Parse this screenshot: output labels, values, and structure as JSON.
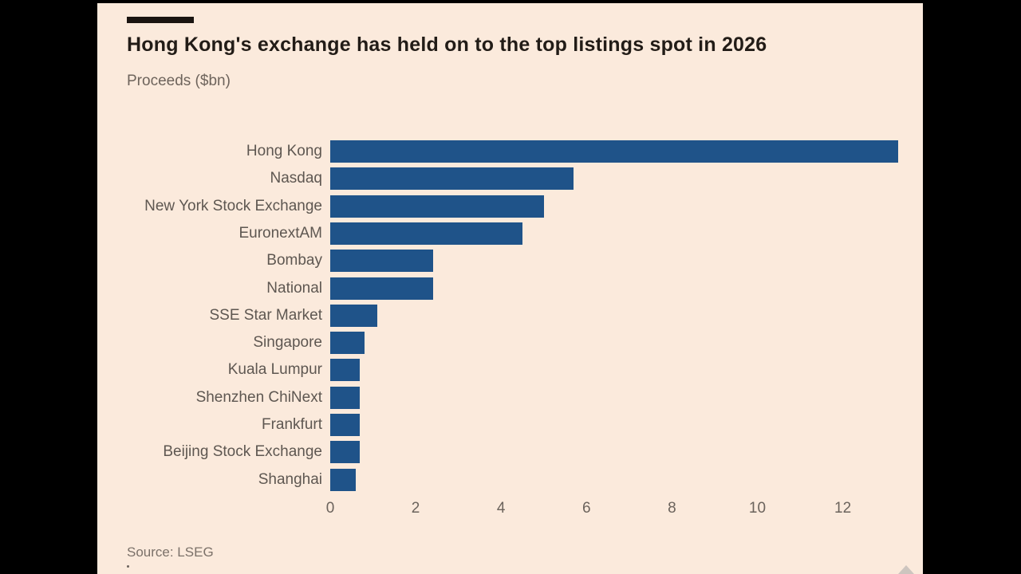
{
  "chart_data": {
    "type": "bar",
    "orientation": "horizontal",
    "title": "Hong Kong's exchange has held on to the top listings spot in 2026",
    "subtitle": "Proceeds ($bn)",
    "source": "Source: LSEG",
    "categories": [
      "Hong Kong",
      "Nasdaq",
      "New York Stock Exchange",
      "EuronextAM",
      "Bombay",
      "National",
      "SSE Star Market",
      "Singapore",
      "Kuala Lumpur",
      "Shenzhen ChiNext",
      "Frankfurt",
      "Beijing Stock Exchange",
      "Shanghai"
    ],
    "values": [
      13.3,
      5.7,
      5.0,
      4.5,
      2.4,
      2.4,
      1.1,
      0.8,
      0.7,
      0.7,
      0.7,
      0.7,
      0.6
    ],
    "x_ticks": [
      0,
      2,
      4,
      6,
      8,
      10,
      12
    ],
    "xlim": [
      0,
      13.4
    ],
    "xlabel": "",
    "ylabel": "",
    "grid": false,
    "legend": false,
    "bar_color": "#1F5389",
    "background_color": "#FBEADC",
    "text_colors": {
      "title": "#221C17",
      "subtitle": "#6E645C",
      "category": "#5E5751",
      "tick": "#6B635C",
      "source": "#7B7169"
    }
  }
}
